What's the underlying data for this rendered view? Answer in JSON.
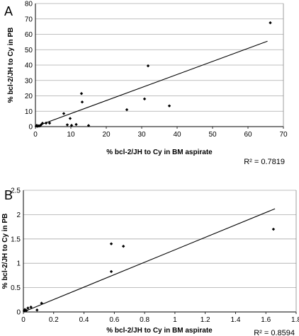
{
  "chart_data": [
    {
      "type": "scatter",
      "panel_label": "A",
      "title": "",
      "xlabel": "% bcl-2/JH to Cy in BM aspirate",
      "ylabel": "% bcl-2/JH to Cy in PB",
      "xlim": [
        0,
        70
      ],
      "ylim": [
        0,
        80
      ],
      "xticks": [
        "0",
        "10",
        "20",
        "30",
        "40",
        "50",
        "60",
        "70"
      ],
      "yticks": [
        "0",
        "10",
        "20",
        "30",
        "40",
        "50",
        "60",
        "70",
        "80"
      ],
      "grid": "horizontal",
      "r2_label": "R² = 0.7819",
      "series": [
        {
          "points": [
            {
              "x": 0.2,
              "y": 0.3
            },
            {
              "x": 0.4,
              "y": 0.8
            },
            {
              "x": 0.6,
              "y": 0.2
            },
            {
              "x": 0.9,
              "y": 0.5
            },
            {
              "x": 1.2,
              "y": 0.4
            },
            {
              "x": 1.6,
              "y": 1.2
            },
            {
              "x": 2.0,
              "y": 2.2
            },
            {
              "x": 3.0,
              "y": 2.3
            },
            {
              "x": 4.0,
              "y": 2.3
            },
            {
              "x": 8.0,
              "y": 8.5
            },
            {
              "x": 9.0,
              "y": 1.2
            },
            {
              "x": 9.8,
              "y": 5.3
            },
            {
              "x": 10.2,
              "y": 0.8
            },
            {
              "x": 11.5,
              "y": 1.4
            },
            {
              "x": 13.0,
              "y": 21.5
            },
            {
              "x": 13.2,
              "y": 16.0
            },
            {
              "x": 15.0,
              "y": 0.7
            },
            {
              "x": 25.8,
              "y": 11.0
            },
            {
              "x": 30.8,
              "y": 18.0
            },
            {
              "x": 31.8,
              "y": 39.5
            },
            {
              "x": 37.8,
              "y": 13.5
            },
            {
              "x": 66.3,
              "y": 67.5
            }
          ]
        }
      ],
      "trendline": {
        "x": [
          0,
          65.5
        ],
        "y": [
          0,
          55.5
        ]
      }
    },
    {
      "type": "scatter",
      "panel_label": "B",
      "title": "",
      "xlabel": "% bcl-2/JH to Cy in BM aspirate",
      "ylabel": "% bcl-2/JH to Cy in PB",
      "xlim": [
        0,
        1.8
      ],
      "ylim": [
        0,
        2.5
      ],
      "xticks": [
        "0",
        "0.2",
        "0.4",
        "0.6",
        "0.8",
        "1",
        "1.2",
        "1.4",
        "1.6",
        "1.8"
      ],
      "yticks": [
        "0",
        "0.5",
        "1",
        "1.5",
        "2",
        "2.5"
      ],
      "grid": "horizontal",
      "r2_label": "R² = 0.8594",
      "series": [
        {
          "points": [
            {
              "x": 0.005,
              "y": 0.02
            },
            {
              "x": 0.01,
              "y": 0.05
            },
            {
              "x": 0.02,
              "y": 0.03
            },
            {
              "x": 0.03,
              "y": 0.08
            },
            {
              "x": 0.05,
              "y": 0.1
            },
            {
              "x": 0.09,
              "y": 0.04
            },
            {
              "x": 0.12,
              "y": 0.18
            },
            {
              "x": 0.58,
              "y": 1.4
            },
            {
              "x": 0.58,
              "y": 0.83
            },
            {
              "x": 0.66,
              "y": 1.35
            },
            {
              "x": 1.65,
              "y": 1.7
            }
          ]
        }
      ],
      "trendline": {
        "x": [
          0,
          1.66
        ],
        "y": [
          0,
          2.12
        ]
      }
    }
  ]
}
